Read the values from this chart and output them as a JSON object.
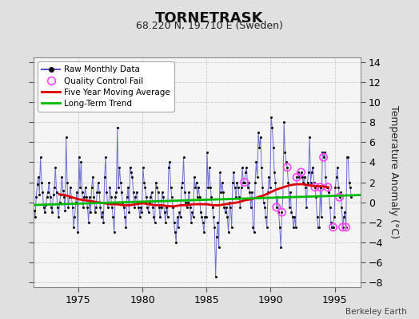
{
  "title": "TORNETRASK",
  "subtitle": "68.220 N, 19.710 E (Sweden)",
  "ylabel": "Temperature Anomaly (°C)",
  "credit": "Berkeley Earth",
  "xlim": [
    1971.5,
    1997.0
  ],
  "ylim": [
    -8.5,
    14.5
  ],
  "yticks": [
    -8,
    -6,
    -4,
    -2,
    0,
    2,
    4,
    6,
    8,
    10,
    12,
    14
  ],
  "xticks": [
    1975,
    1980,
    1985,
    1990,
    1995
  ],
  "fig_bg": "#e0e0e0",
  "plot_bg": "#f5f5f5",
  "raw_color": "#5555cc",
  "dot_color": "#111111",
  "mavg_color": "#dd0000",
  "trend_color": "#00bb00",
  "qc_color": "#ff44ff",
  "trend_x": [
    1971.5,
    1997.0
  ],
  "trend_y": [
    -0.28,
    0.72
  ],
  "raw_monthly": [
    [
      1971.042,
      1.2
    ],
    [
      1971.125,
      0.5
    ],
    [
      1971.208,
      2.8
    ],
    [
      1971.292,
      1.5
    ],
    [
      1971.375,
      0.3
    ],
    [
      1971.458,
      -0.2
    ],
    [
      1971.542,
      -0.8
    ],
    [
      1971.625,
      -1.5
    ],
    [
      1971.708,
      0.5
    ],
    [
      1971.792,
      1.8
    ],
    [
      1971.875,
      2.5
    ],
    [
      1971.958,
      0.8
    ],
    [
      1972.042,
      4.5
    ],
    [
      1972.125,
      2.0
    ],
    [
      1972.208,
      1.0
    ],
    [
      1972.292,
      -0.5
    ],
    [
      1972.375,
      -1.0
    ],
    [
      1972.458,
      -0.3
    ],
    [
      1972.542,
      0.5
    ],
    [
      1972.625,
      1.0
    ],
    [
      1972.708,
      2.0
    ],
    [
      1972.792,
      0.5
    ],
    [
      1972.875,
      -0.5
    ],
    [
      1972.958,
      -1.0
    ],
    [
      1973.042,
      0.8
    ],
    [
      1973.125,
      1.5
    ],
    [
      1973.208,
      3.5
    ],
    [
      1973.292,
      1.0
    ],
    [
      1973.375,
      -0.5
    ],
    [
      1973.458,
      -1.5
    ],
    [
      1973.542,
      0.0
    ],
    [
      1973.625,
      0.8
    ],
    [
      1973.708,
      2.5
    ],
    [
      1973.792,
      1.2
    ],
    [
      1973.875,
      0.5
    ],
    [
      1973.958,
      -0.8
    ],
    [
      1974.042,
      6.5
    ],
    [
      1974.125,
      2.0
    ],
    [
      1974.208,
      -0.5
    ],
    [
      1974.292,
      0.5
    ],
    [
      1974.375,
      1.5
    ],
    [
      1974.458,
      0.5
    ],
    [
      1974.542,
      -0.5
    ],
    [
      1974.625,
      -2.5
    ],
    [
      1974.708,
      -1.5
    ],
    [
      1974.792,
      0.0
    ],
    [
      1974.875,
      1.0
    ],
    [
      1974.958,
      -3.0
    ],
    [
      1975.042,
      4.5
    ],
    [
      1975.125,
      1.5
    ],
    [
      1975.208,
      4.0
    ],
    [
      1975.292,
      1.0
    ],
    [
      1975.375,
      -0.5
    ],
    [
      1975.458,
      0.5
    ],
    [
      1975.542,
      1.5
    ],
    [
      1975.625,
      0.5
    ],
    [
      1975.708,
      -0.5
    ],
    [
      1975.792,
      -2.0
    ],
    [
      1975.875,
      0.5
    ],
    [
      1975.958,
      -1.0
    ],
    [
      1976.042,
      1.5
    ],
    [
      1976.125,
      2.5
    ],
    [
      1976.208,
      0.5
    ],
    [
      1976.292,
      -1.0
    ],
    [
      1976.375,
      -0.5
    ],
    [
      1976.458,
      1.0
    ],
    [
      1976.542,
      2.0
    ],
    [
      1976.625,
      1.0
    ],
    [
      1976.708,
      -0.5
    ],
    [
      1976.792,
      -1.5
    ],
    [
      1976.875,
      -1.0
    ],
    [
      1976.958,
      -2.0
    ],
    [
      1977.042,
      2.5
    ],
    [
      1977.125,
      4.5
    ],
    [
      1977.208,
      1.0
    ],
    [
      1977.292,
      -0.5
    ],
    [
      1977.375,
      0.0
    ],
    [
      1977.458,
      1.5
    ],
    [
      1977.542,
      0.5
    ],
    [
      1977.625,
      -0.5
    ],
    [
      1977.708,
      -1.5
    ],
    [
      1977.792,
      -3.0
    ],
    [
      1977.875,
      0.5
    ],
    [
      1977.958,
      1.0
    ],
    [
      1978.042,
      7.5
    ],
    [
      1978.125,
      1.5
    ],
    [
      1978.208,
      3.5
    ],
    [
      1978.292,
      2.0
    ],
    [
      1978.375,
      1.0
    ],
    [
      1978.458,
      0.0
    ],
    [
      1978.542,
      -0.5
    ],
    [
      1978.625,
      -1.5
    ],
    [
      1978.708,
      -2.5
    ],
    [
      1978.792,
      0.5
    ],
    [
      1978.875,
      1.5
    ],
    [
      1978.958,
      -1.0
    ],
    [
      1979.042,
      3.5
    ],
    [
      1979.125,
      3.0
    ],
    [
      1979.208,
      2.5
    ],
    [
      1979.292,
      1.0
    ],
    [
      1979.375,
      -0.5
    ],
    [
      1979.458,
      0.5
    ],
    [
      1979.542,
      1.0
    ],
    [
      1979.625,
      0.0
    ],
    [
      1979.708,
      -0.5
    ],
    [
      1979.792,
      -1.5
    ],
    [
      1979.875,
      -0.5
    ],
    [
      1979.958,
      -1.0
    ],
    [
      1980.042,
      3.5
    ],
    [
      1980.125,
      2.0
    ],
    [
      1980.208,
      1.5
    ],
    [
      1980.292,
      0.5
    ],
    [
      1980.375,
      -0.5
    ],
    [
      1980.458,
      -1.0
    ],
    [
      1980.542,
      0.0
    ],
    [
      1980.625,
      0.5
    ],
    [
      1980.708,
      1.0
    ],
    [
      1980.792,
      -0.5
    ],
    [
      1980.875,
      -1.5
    ],
    [
      1980.958,
      -2.0
    ],
    [
      1981.042,
      2.0
    ],
    [
      1981.125,
      1.5
    ],
    [
      1981.208,
      1.0
    ],
    [
      1981.292,
      -0.5
    ],
    [
      1981.375,
      -1.5
    ],
    [
      1981.458,
      -0.5
    ],
    [
      1981.542,
      1.0
    ],
    [
      1981.625,
      0.5
    ],
    [
      1981.708,
      -1.0
    ],
    [
      1981.792,
      -2.0
    ],
    [
      1981.875,
      -0.5
    ],
    [
      1981.958,
      -1.5
    ],
    [
      1982.042,
      3.5
    ],
    [
      1982.125,
      4.0
    ],
    [
      1982.208,
      1.5
    ],
    [
      1982.292,
      0.5
    ],
    [
      1982.375,
      -0.5
    ],
    [
      1982.458,
      -2.0
    ],
    [
      1982.542,
      -3.0
    ],
    [
      1982.625,
      -4.0
    ],
    [
      1982.708,
      -1.5
    ],
    [
      1982.792,
      -2.5
    ],
    [
      1982.875,
      -1.0
    ],
    [
      1982.958,
      -1.5
    ],
    [
      1983.042,
      1.5
    ],
    [
      1983.125,
      2.0
    ],
    [
      1983.208,
      4.5
    ],
    [
      1983.292,
      1.0
    ],
    [
      1983.375,
      0.0
    ],
    [
      1983.458,
      -0.5
    ],
    [
      1983.542,
      0.0
    ],
    [
      1983.625,
      1.0
    ],
    [
      1983.708,
      -0.5
    ],
    [
      1983.792,
      -2.0
    ],
    [
      1983.875,
      -1.0
    ],
    [
      1983.958,
      -1.5
    ],
    [
      1984.042,
      2.5
    ],
    [
      1984.125,
      1.5
    ],
    [
      1984.208,
      2.0
    ],
    [
      1984.292,
      0.5
    ],
    [
      1984.375,
      1.5
    ],
    [
      1984.458,
      0.5
    ],
    [
      1984.542,
      -1.0
    ],
    [
      1984.625,
      -1.5
    ],
    [
      1984.708,
      -2.0
    ],
    [
      1984.792,
      -3.0
    ],
    [
      1984.875,
      -1.5
    ],
    [
      1984.958,
      -1.5
    ],
    [
      1985.042,
      5.0
    ],
    [
      1985.125,
      1.5
    ],
    [
      1985.208,
      3.5
    ],
    [
      1985.292,
      1.5
    ],
    [
      1985.375,
      0.5
    ],
    [
      1985.458,
      -0.5
    ],
    [
      1985.542,
      -1.5
    ],
    [
      1985.625,
      -2.5
    ],
    [
      1985.708,
      -7.5
    ],
    [
      1985.792,
      -3.5
    ],
    [
      1985.875,
      -2.0
    ],
    [
      1985.958,
      -4.5
    ],
    [
      1986.042,
      3.0
    ],
    [
      1986.125,
      1.0
    ],
    [
      1986.208,
      2.0
    ],
    [
      1986.292,
      1.0
    ],
    [
      1986.375,
      -0.5
    ],
    [
      1986.458,
      -1.0
    ],
    [
      1986.542,
      -0.5
    ],
    [
      1986.625,
      -1.5
    ],
    [
      1986.708,
      -3.0
    ],
    [
      1986.792,
      0.0
    ],
    [
      1986.875,
      -0.5
    ],
    [
      1986.958,
      -2.5
    ],
    [
      1987.042,
      2.0
    ],
    [
      1987.125,
      3.0
    ],
    [
      1987.208,
      1.5
    ],
    [
      1987.292,
      0.5
    ],
    [
      1987.375,
      2.0
    ],
    [
      1987.458,
      1.5
    ],
    [
      1987.542,
      0.5
    ],
    [
      1987.625,
      -0.5
    ],
    [
      1987.708,
      1.5
    ],
    [
      1987.792,
      3.5
    ],
    [
      1987.875,
      2.0
    ],
    [
      1987.958,
      2.0
    ],
    [
      1988.042,
      3.0
    ],
    [
      1988.125,
      3.5
    ],
    [
      1988.208,
      1.5
    ],
    [
      1988.292,
      2.0
    ],
    [
      1988.375,
      1.0
    ],
    [
      1988.458,
      -0.5
    ],
    [
      1988.542,
      1.0
    ],
    [
      1988.625,
      -2.5
    ],
    [
      1988.708,
      -3.0
    ],
    [
      1988.792,
      2.0
    ],
    [
      1988.875,
      4.0
    ],
    [
      1988.958,
      2.5
    ],
    [
      1989.042,
      7.0
    ],
    [
      1989.125,
      5.5
    ],
    [
      1989.208,
      6.5
    ],
    [
      1989.292,
      3.5
    ],
    [
      1989.375,
      1.5
    ],
    [
      1989.458,
      0.0
    ],
    [
      1989.542,
      -0.5
    ],
    [
      1989.625,
      -1.5
    ],
    [
      1989.708,
      -2.5
    ],
    [
      1989.792,
      1.0
    ],
    [
      1989.875,
      2.5
    ],
    [
      1989.958,
      1.5
    ],
    [
      1990.042,
      8.5
    ],
    [
      1990.125,
      7.5
    ],
    [
      1990.208,
      5.5
    ],
    [
      1990.292,
      3.0
    ],
    [
      1990.375,
      2.0
    ],
    [
      1990.458,
      -0.5
    ],
    [
      1990.542,
      0.5
    ],
    [
      1990.625,
      -1.0
    ],
    [
      1990.708,
      -2.5
    ],
    [
      1990.792,
      -4.5
    ],
    [
      1990.875,
      -1.0
    ],
    [
      1990.958,
      0.5
    ],
    [
      1991.042,
      8.0
    ],
    [
      1991.125,
      5.0
    ],
    [
      1991.208,
      4.0
    ],
    [
      1991.292,
      3.5
    ],
    [
      1991.375,
      2.0
    ],
    [
      1991.458,
      -0.5
    ],
    [
      1991.542,
      1.0
    ],
    [
      1991.625,
      -1.0
    ],
    [
      1991.708,
      -1.5
    ],
    [
      1991.792,
      -2.5
    ],
    [
      1991.875,
      -1.5
    ],
    [
      1991.958,
      -2.5
    ],
    [
      1992.042,
      2.5
    ],
    [
      1992.125,
      3.0
    ],
    [
      1992.208,
      2.5
    ],
    [
      1992.292,
      2.5
    ],
    [
      1992.375,
      3.0
    ],
    [
      1992.458,
      2.5
    ],
    [
      1992.542,
      2.0
    ],
    [
      1992.625,
      2.5
    ],
    [
      1992.708,
      1.5
    ],
    [
      1992.792,
      -0.5
    ],
    [
      1992.875,
      2.0
    ],
    [
      1992.958,
      3.0
    ],
    [
      1993.042,
      6.5
    ],
    [
      1993.125,
      2.0
    ],
    [
      1993.208,
      3.0
    ],
    [
      1993.292,
      3.5
    ],
    [
      1993.375,
      2.0
    ],
    [
      1993.458,
      1.5
    ],
    [
      1993.542,
      0.5
    ],
    [
      1993.625,
      -1.5
    ],
    [
      1993.708,
      -2.5
    ],
    [
      1993.792,
      -2.5
    ],
    [
      1993.875,
      1.5
    ],
    [
      1993.958,
      -1.5
    ],
    [
      1994.042,
      5.0
    ],
    [
      1994.125,
      4.5
    ],
    [
      1994.208,
      5.0
    ],
    [
      1994.292,
      2.5
    ],
    [
      1994.375,
      1.5
    ],
    [
      1994.458,
      1.5
    ],
    [
      1994.542,
      1.0
    ],
    [
      1994.625,
      -0.5
    ],
    [
      1994.708,
      -2.0
    ],
    [
      1994.792,
      -2.5
    ],
    [
      1994.875,
      -2.5
    ],
    [
      1994.958,
      -1.5
    ],
    [
      1995.042,
      1.5
    ],
    [
      1995.125,
      2.5
    ],
    [
      1995.208,
      3.5
    ],
    [
      1995.292,
      1.5
    ],
    [
      1995.375,
      0.5
    ],
    [
      1995.458,
      1.0
    ],
    [
      1995.542,
      -0.5
    ],
    [
      1995.625,
      -2.5
    ],
    [
      1995.708,
      -1.5
    ],
    [
      1995.792,
      -1.0
    ],
    [
      1995.875,
      -2.5
    ],
    [
      1995.958,
      4.5
    ],
    [
      1996.042,
      4.5
    ],
    [
      1996.125,
      2.0
    ],
    [
      1996.208,
      1.5
    ],
    [
      1996.292,
      0.5
    ]
  ],
  "qc_fail_points": [
    [
      1987.958,
      2.0
    ],
    [
      1990.458,
      -0.5
    ],
    [
      1990.875,
      -1.0
    ],
    [
      1991.292,
      3.5
    ],
    [
      1992.042,
      2.5
    ],
    [
      1992.375,
      3.0
    ],
    [
      1993.458,
      1.5
    ],
    [
      1993.875,
      1.5
    ],
    [
      1994.125,
      4.5
    ],
    [
      1994.458,
      1.5
    ],
    [
      1994.875,
      -2.5
    ],
    [
      1995.375,
      0.5
    ],
    [
      1995.625,
      -2.5
    ],
    [
      1995.875,
      -2.5
    ]
  ],
  "moving_avg": [
    [
      1973.5,
      0.8
    ],
    [
      1974.0,
      0.7
    ],
    [
      1974.5,
      0.5
    ],
    [
      1975.0,
      0.3
    ],
    [
      1975.5,
      0.2
    ],
    [
      1976.0,
      0.1
    ],
    [
      1976.5,
      0.0
    ],
    [
      1977.0,
      -0.1
    ],
    [
      1977.5,
      -0.2
    ],
    [
      1978.0,
      -0.2
    ],
    [
      1978.5,
      -0.3
    ],
    [
      1979.0,
      -0.3
    ],
    [
      1979.5,
      -0.2
    ],
    [
      1980.0,
      -0.1
    ],
    [
      1980.5,
      -0.2
    ],
    [
      1981.0,
      -0.3
    ],
    [
      1981.5,
      -0.3
    ],
    [
      1982.0,
      -0.4
    ],
    [
      1982.5,
      -0.4
    ],
    [
      1983.0,
      -0.3
    ],
    [
      1983.5,
      -0.3
    ],
    [
      1984.0,
      -0.2
    ],
    [
      1984.5,
      -0.2
    ],
    [
      1985.0,
      -0.2
    ],
    [
      1985.5,
      -0.3
    ],
    [
      1986.0,
      -0.3
    ],
    [
      1986.5,
      -0.2
    ],
    [
      1987.0,
      -0.1
    ],
    [
      1987.5,
      0.0
    ],
    [
      1988.0,
      0.2
    ],
    [
      1988.5,
      0.3
    ],
    [
      1989.0,
      0.5
    ],
    [
      1989.5,
      0.7
    ],
    [
      1990.0,
      1.0
    ],
    [
      1990.5,
      1.3
    ],
    [
      1991.0,
      1.5
    ],
    [
      1991.5,
      1.7
    ],
    [
      1992.0,
      1.8
    ],
    [
      1992.5,
      1.8
    ],
    [
      1993.0,
      1.7
    ],
    [
      1993.5,
      1.6
    ],
    [
      1994.0,
      1.6
    ],
    [
      1994.5,
      1.5
    ]
  ]
}
